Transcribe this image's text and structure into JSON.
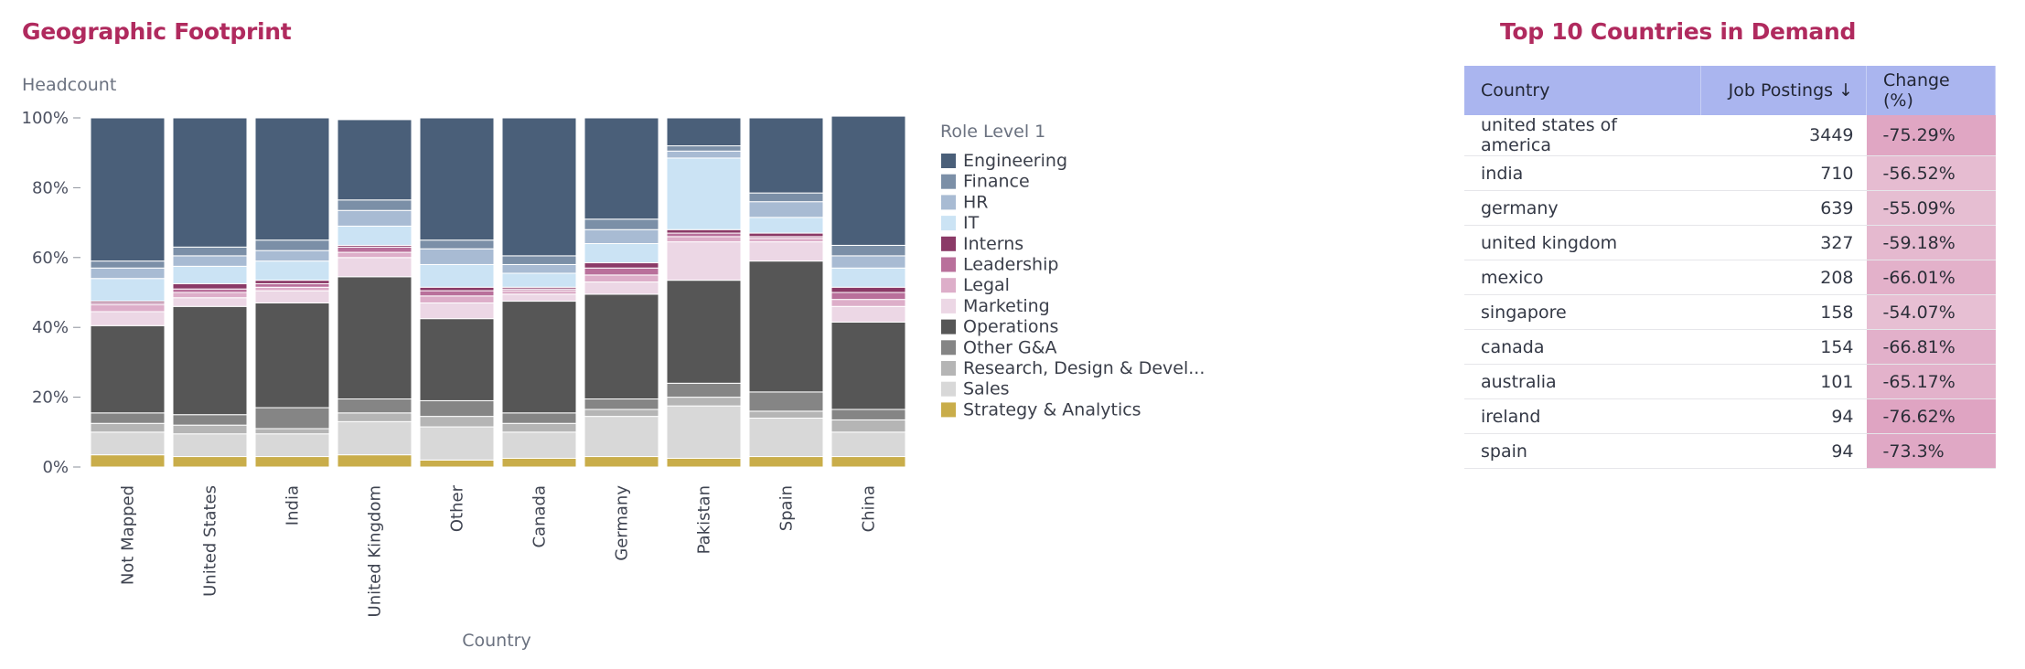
{
  "left_title": "Geographic Footprint",
  "right_title": "Top 10 Countries in Demand",
  "chart_data": {
    "type": "bar",
    "stacked": true,
    "ylabel": "Headcount",
    "xlabel": "Country",
    "ylim": [
      0,
      100
    ],
    "y_tick_labels": [
      "0%",
      "20%",
      "40%",
      "60%",
      "80%",
      "100%"
    ],
    "legend_title": "Role Level 1",
    "legend_position": "right",
    "categories": [
      "Not Mapped",
      "United States",
      "India",
      "United Kingdom",
      "Other",
      "Canada",
      "Germany",
      "Pakistan",
      "Spain",
      "China"
    ],
    "series": [
      {
        "name": "Strategy & Analytics",
        "color": "#c9ad4a",
        "values": [
          3.5,
          3,
          3,
          3.5,
          2,
          2.5,
          3,
          2.5,
          3,
          3
        ]
      },
      {
        "name": "Sales",
        "color": "#d8d8d8",
        "values": [
          6.5,
          6.5,
          6.5,
          9.5,
          9.5,
          7.5,
          11.5,
          15,
          11,
          7
        ]
      },
      {
        "name": "Research, Design & Devel...",
        "color": "#b5b5b5",
        "values": [
          2.5,
          2.5,
          1.5,
          2.5,
          3,
          2.5,
          2,
          2.5,
          2,
          3.5
        ]
      },
      {
        "name": "Other G&A",
        "color": "#858585",
        "values": [
          3,
          3,
          6,
          4,
          4.5,
          3,
          3,
          4,
          5.5,
          3
        ]
      },
      {
        "name": "Operations",
        "color": "#565656",
        "values": [
          25,
          31,
          30,
          35,
          23.5,
          32,
          30,
          29.5,
          37.5,
          25
        ]
      },
      {
        "name": "Marketing",
        "color": "#ecd7e5",
        "values": [
          4,
          2.5,
          3.5,
          5.5,
          4.5,
          2,
          3.5,
          11,
          5.5,
          4.5
        ]
      },
      {
        "name": "Legal",
        "color": "#ddaec9",
        "values": [
          2,
          1.5,
          1,
          1.5,
          2,
          1,
          2,
          1.5,
          1,
          2
        ]
      },
      {
        "name": "Leadership",
        "color": "#b9709b",
        "values": [
          0.5,
          1,
          1,
          1.5,
          1.5,
          0.5,
          2,
          1,
          0.5,
          2
        ]
      },
      {
        "name": "Interns",
        "color": "#8b3a67",
        "values": [
          0.5,
          1.5,
          1,
          0.5,
          1,
          0.5,
          1.5,
          1,
          1,
          1.5
        ]
      },
      {
        "name": "IT",
        "color": "#cbe3f4",
        "values": [
          6.5,
          5,
          5.5,
          5.5,
          6.5,
          4,
          5.5,
          20.5,
          4.5,
          5.5
        ]
      },
      {
        "name": "HR",
        "color": "#a8bbd3",
        "values": [
          3,
          3,
          3,
          4.5,
          4.5,
          2.5,
          4,
          2,
          4.5,
          3.5
        ]
      },
      {
        "name": "Finance",
        "color": "#7b8fa7",
        "values": [
          2,
          2.5,
          3,
          3,
          2.5,
          2.5,
          3,
          1.5,
          2.5,
          3
        ]
      },
      {
        "name": "Engineering",
        "color": "#4a5f79",
        "values": [
          41,
          37,
          35,
          23,
          35,
          39.5,
          29,
          8,
          21.5,
          37
        ]
      }
    ]
  },
  "legend_order": [
    "Engineering",
    "Finance",
    "HR",
    "IT",
    "Interns",
    "Leadership",
    "Legal",
    "Marketing",
    "Operations",
    "Other G&A",
    "Research, Design & Devel...",
    "Sales",
    "Strategy & Analytics"
  ],
  "table": {
    "headers": {
      "country": "Country",
      "postings": "Job Postings ↓",
      "change": "Change (%)"
    },
    "header_color": "#aab5ef",
    "rows": [
      {
        "country": "united states of america",
        "postings": "3449",
        "change": "-75.29%",
        "change_value": -75.29
      },
      {
        "country": "india",
        "postings": "710",
        "change": "-56.52%",
        "change_value": -56.52
      },
      {
        "country": "germany",
        "postings": "639",
        "change": "-55.09%",
        "change_value": -55.09
      },
      {
        "country": "united kingdom",
        "postings": "327",
        "change": "-59.18%",
        "change_value": -59.18
      },
      {
        "country": "mexico",
        "postings": "208",
        "change": "-66.01%",
        "change_value": -66.01
      },
      {
        "country": "singapore",
        "postings": "158",
        "change": "-54.07%",
        "change_value": -54.07
      },
      {
        "country": "canada",
        "postings": "154",
        "change": "-66.81%",
        "change_value": -66.81
      },
      {
        "country": "australia",
        "postings": "101",
        "change": "-65.17%",
        "change_value": -65.17
      },
      {
        "country": "ireland",
        "postings": "94",
        "change": "-76.62%",
        "change_value": -76.62
      },
      {
        "country": "spain",
        "postings": "94",
        "change": "-73.3%",
        "change_value": -73.3
      }
    ]
  }
}
